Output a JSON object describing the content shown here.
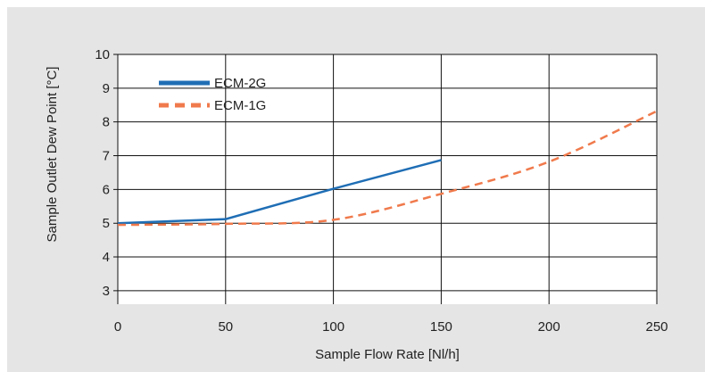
{
  "chart_data": {
    "type": "line",
    "title": "",
    "xlabel": "Sample Flow Rate [Nl/h]",
    "ylabel": "Sample Outlet Dew Point [°C]",
    "xlim": [
      0,
      250
    ],
    "ylim": [
      2.6,
      10
    ],
    "xticks": [
      0,
      50,
      100,
      150,
      200,
      250
    ],
    "yticks": [
      3,
      4,
      5,
      6,
      7,
      8,
      9,
      10
    ],
    "grid": true,
    "legend_position": "top-left",
    "series": [
      {
        "name": "ECM-2G",
        "color": "#1f6eb5",
        "style": "solid",
        "x": [
          0,
          50,
          100,
          150
        ],
        "y": [
          5.0,
          5.12,
          6.02,
          6.87
        ]
      },
      {
        "name": "ECM-1G",
        "color": "#f07a4c",
        "style": "dashed",
        "x": [
          0,
          50,
          100,
          150,
          200,
          250
        ],
        "y": [
          4.95,
          4.98,
          5.1,
          5.87,
          6.82,
          8.32
        ]
      }
    ]
  }
}
